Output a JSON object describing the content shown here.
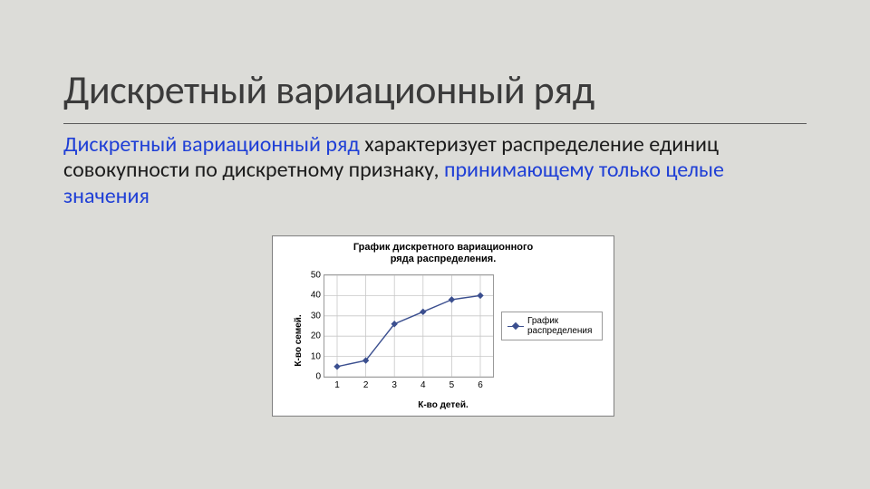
{
  "title": "Дискретный вариационный ряд",
  "body": {
    "hl1": "Дискретный вариационный ряд",
    "plain1": " характеризует распределение единиц совокупности по дискретному признаку, ",
    "hl2": "принимающему только целые значения"
  },
  "chart": {
    "type": "line",
    "title_line1": "График дискретного вариационного",
    "title_line2": "ряда распределения.",
    "ylabel": "К-во семей.",
    "xlabel": "К-во детей.",
    "x_values": [
      1,
      2,
      3,
      4,
      5,
      6
    ],
    "y_values": [
      5,
      8,
      26,
      32,
      38,
      40
    ],
    "xlim": [
      1,
      6
    ],
    "ylim": [
      0,
      50
    ],
    "ytick_step": 10,
    "line_color": "#3b4f8f",
    "marker_fill": "#3b4f8f",
    "marker_style": "diamond",
    "marker_size": 6,
    "line_width": 1.4,
    "grid_color": "#c8c8c8",
    "background_color": "#ffffff",
    "border_color": "#9a9a9a",
    "tick_fontsize": 10,
    "label_fontsize": 10,
    "title_fontsize": 11,
    "legend_label": "График\nраспределения",
    "legend_position": "right"
  }
}
